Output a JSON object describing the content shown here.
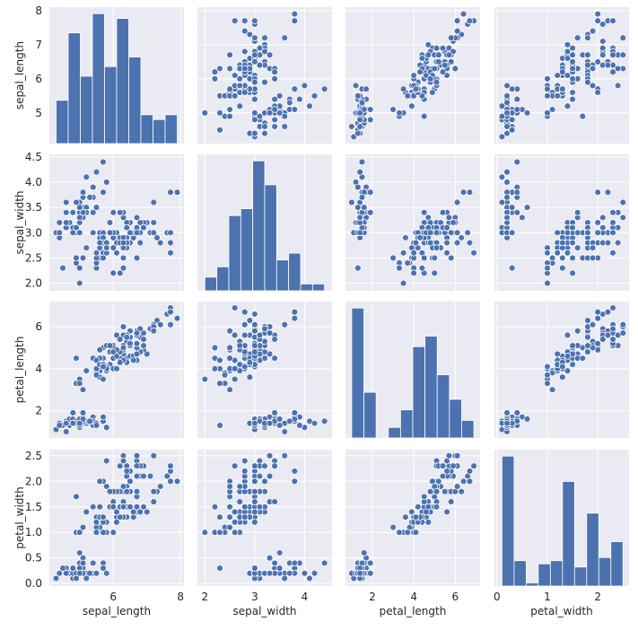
{
  "chart_data": {
    "type": "pairplot",
    "style": "seaborn darkgrid",
    "colors": {
      "marker": "#4c72b0",
      "panel": "#eaeaf2",
      "grid": "#ffffff"
    },
    "variables": [
      "sepal_length",
      "sepal_width",
      "petal_length",
      "petal_width"
    ],
    "axes": {
      "sepal_length": {
        "range": [
          4.1,
          8.1
        ],
        "ticks": [
          5,
          6,
          7,
          8
        ],
        "x_ticks": [
          6,
          8
        ]
      },
      "sepal_width": {
        "range": [
          1.85,
          4.55
        ],
        "ticks": [
          2.0,
          2.5,
          3.0,
          3.5,
          4.0,
          4.5
        ],
        "x_ticks": [
          2,
          3,
          4
        ]
      },
      "petal_length": {
        "range": [
          0.7,
          7.2
        ],
        "ticks": [
          2,
          4,
          6
        ],
        "x_ticks": [
          2,
          4,
          6
        ]
      },
      "petal_width": {
        "range": [
          -0.05,
          2.62
        ],
        "ticks": [
          0.0,
          0.5,
          1.0,
          1.5,
          2.0,
          2.5
        ],
        "x_ticks": [
          0,
          1,
          2
        ]
      }
    },
    "histograms": {
      "sepal_length": {
        "edges": [
          4.3,
          4.66,
          5.02,
          5.38,
          5.74,
          6.1,
          6.46,
          6.82,
          7.18,
          7.54,
          7.9
        ],
        "counts": [
          9,
          23,
          14,
          27,
          16,
          26,
          18,
          6,
          5,
          6
        ]
      },
      "sepal_width": {
        "edges": [
          2.0,
          2.24,
          2.48,
          2.72,
          2.96,
          3.2,
          3.44,
          3.68,
          3.92,
          4.16,
          4.4
        ],
        "counts": [
          4,
          7,
          22,
          24,
          38,
          31,
          9,
          11,
          2,
          2
        ]
      },
      "petal_length": {
        "edges": [
          1.0,
          1.59,
          2.18,
          2.77,
          3.36,
          3.95,
          4.54,
          5.13,
          5.72,
          6.31,
          6.9
        ],
        "counts": [
          37,
          13,
          0,
          3,
          8,
          26,
          29,
          18,
          11,
          5
        ]
      },
      "petal_width": {
        "edges": [
          0.1,
          0.34,
          0.58,
          0.82,
          1.06,
          1.3,
          1.54,
          1.78,
          2.02,
          2.26,
          2.5
        ],
        "counts": [
          41,
          8,
          1,
          7,
          8,
          33,
          6,
          23,
          9,
          14
        ]
      }
    },
    "observations": [
      [
        5.1,
        3.5,
        1.4,
        0.2
      ],
      [
        4.9,
        3.0,
        1.4,
        0.2
      ],
      [
        4.7,
        3.2,
        1.3,
        0.2
      ],
      [
        4.6,
        3.1,
        1.5,
        0.2
      ],
      [
        5.0,
        3.6,
        1.4,
        0.2
      ],
      [
        5.4,
        3.9,
        1.7,
        0.4
      ],
      [
        4.6,
        3.4,
        1.4,
        0.3
      ],
      [
        5.0,
        3.4,
        1.5,
        0.2
      ],
      [
        4.4,
        2.9,
        1.4,
        0.2
      ],
      [
        4.9,
        3.1,
        1.5,
        0.1
      ],
      [
        5.4,
        3.7,
        1.5,
        0.2
      ],
      [
        4.8,
        3.4,
        1.6,
        0.2
      ],
      [
        4.8,
        3.0,
        1.4,
        0.1
      ],
      [
        4.3,
        3.0,
        1.1,
        0.1
      ],
      [
        5.8,
        4.0,
        1.2,
        0.2
      ],
      [
        5.7,
        4.4,
        1.5,
        0.4
      ],
      [
        5.4,
        3.9,
        1.3,
        0.4
      ],
      [
        5.1,
        3.5,
        1.4,
        0.3
      ],
      [
        5.7,
        3.8,
        1.7,
        0.3
      ],
      [
        5.1,
        3.8,
        1.5,
        0.3
      ],
      [
        5.4,
        3.4,
        1.7,
        0.2
      ],
      [
        5.1,
        3.7,
        1.5,
        0.4
      ],
      [
        4.6,
        3.6,
        1.0,
        0.2
      ],
      [
        5.1,
        3.3,
        1.7,
        0.5
      ],
      [
        4.8,
        3.4,
        1.9,
        0.2
      ],
      [
        5.0,
        3.0,
        1.6,
        0.2
      ],
      [
        5.0,
        3.4,
        1.6,
        0.4
      ],
      [
        5.2,
        3.5,
        1.5,
        0.2
      ],
      [
        5.2,
        3.4,
        1.4,
        0.2
      ],
      [
        4.7,
        3.2,
        1.6,
        0.2
      ],
      [
        4.8,
        3.1,
        1.6,
        0.2
      ],
      [
        5.4,
        3.4,
        1.5,
        0.4
      ],
      [
        5.2,
        4.1,
        1.5,
        0.1
      ],
      [
        5.5,
        4.2,
        1.4,
        0.2
      ],
      [
        4.9,
        3.1,
        1.5,
        0.2
      ],
      [
        5.0,
        3.2,
        1.2,
        0.2
      ],
      [
        5.5,
        3.5,
        1.3,
        0.2
      ],
      [
        4.9,
        3.6,
        1.4,
        0.1
      ],
      [
        4.4,
        3.0,
        1.3,
        0.2
      ],
      [
        5.1,
        3.4,
        1.5,
        0.2
      ],
      [
        5.0,
        3.5,
        1.3,
        0.3
      ],
      [
        4.5,
        2.3,
        1.3,
        0.3
      ],
      [
        4.4,
        3.2,
        1.3,
        0.2
      ],
      [
        5.0,
        3.5,
        1.6,
        0.6
      ],
      [
        5.1,
        3.8,
        1.9,
        0.4
      ],
      [
        4.8,
        3.0,
        1.4,
        0.3
      ],
      [
        5.1,
        3.8,
        1.6,
        0.2
      ],
      [
        4.6,
        3.2,
        1.4,
        0.2
      ],
      [
        5.3,
        3.7,
        1.5,
        0.2
      ],
      [
        5.0,
        3.3,
        1.4,
        0.2
      ],
      [
        7.0,
        3.2,
        4.7,
        1.4
      ],
      [
        6.4,
        3.2,
        4.5,
        1.5
      ],
      [
        6.9,
        3.1,
        4.9,
        1.5
      ],
      [
        5.5,
        2.3,
        4.0,
        1.3
      ],
      [
        6.5,
        2.8,
        4.6,
        1.5
      ],
      [
        5.7,
        2.8,
        4.5,
        1.3
      ],
      [
        6.3,
        3.3,
        4.7,
        1.6
      ],
      [
        4.9,
        2.4,
        3.3,
        1.0
      ],
      [
        6.6,
        2.9,
        4.6,
        1.3
      ],
      [
        5.2,
        2.7,
        3.9,
        1.4
      ],
      [
        5.0,
        2.0,
        3.5,
        1.0
      ],
      [
        5.9,
        3.0,
        4.2,
        1.5
      ],
      [
        6.0,
        2.2,
        4.0,
        1.0
      ],
      [
        6.1,
        2.9,
        4.7,
        1.4
      ],
      [
        5.6,
        2.9,
        3.6,
        1.3
      ],
      [
        6.7,
        3.1,
        4.4,
        1.4
      ],
      [
        5.6,
        3.0,
        4.5,
        1.5
      ],
      [
        5.8,
        2.7,
        4.1,
        1.0
      ],
      [
        6.2,
        2.2,
        4.5,
        1.5
      ],
      [
        5.6,
        2.5,
        3.9,
        1.1
      ],
      [
        5.9,
        3.2,
        4.8,
        1.8
      ],
      [
        6.1,
        2.8,
        4.0,
        1.3
      ],
      [
        6.3,
        2.5,
        4.9,
        1.5
      ],
      [
        6.1,
        2.8,
        4.7,
        1.2
      ],
      [
        6.4,
        2.9,
        4.3,
        1.3
      ],
      [
        6.6,
        3.0,
        4.4,
        1.4
      ],
      [
        6.8,
        2.8,
        4.8,
        1.4
      ],
      [
        6.7,
        3.0,
        5.0,
        1.7
      ],
      [
        6.0,
        2.9,
        4.5,
        1.5
      ],
      [
        5.7,
        2.6,
        3.5,
        1.0
      ],
      [
        5.5,
        2.4,
        3.8,
        1.1
      ],
      [
        5.5,
        2.4,
        3.7,
        1.0
      ],
      [
        5.8,
        2.7,
        3.9,
        1.2
      ],
      [
        6.0,
        2.7,
        5.1,
        1.6
      ],
      [
        5.4,
        3.0,
        4.5,
        1.5
      ],
      [
        6.0,
        3.4,
        4.5,
        1.6
      ],
      [
        6.7,
        3.1,
        4.7,
        1.5
      ],
      [
        6.3,
        2.3,
        4.4,
        1.3
      ],
      [
        5.6,
        3.0,
        4.1,
        1.3
      ],
      [
        5.5,
        2.5,
        4.0,
        1.3
      ],
      [
        5.5,
        2.6,
        4.4,
        1.2
      ],
      [
        6.1,
        3.0,
        4.6,
        1.4
      ],
      [
        5.8,
        2.6,
        4.0,
        1.2
      ],
      [
        5.0,
        2.3,
        3.3,
        1.0
      ],
      [
        5.6,
        2.7,
        4.2,
        1.3
      ],
      [
        5.7,
        3.0,
        4.2,
        1.2
      ],
      [
        5.7,
        2.9,
        4.2,
        1.3
      ],
      [
        6.2,
        2.9,
        4.3,
        1.3
      ],
      [
        5.1,
        2.5,
        3.0,
        1.1
      ],
      [
        5.7,
        2.8,
        4.1,
        1.3
      ],
      [
        6.3,
        3.3,
        6.0,
        2.5
      ],
      [
        5.8,
        2.7,
        5.1,
        1.9
      ],
      [
        7.1,
        3.0,
        5.9,
        2.1
      ],
      [
        6.3,
        2.9,
        5.6,
        1.8
      ],
      [
        6.5,
        3.0,
        5.8,
        2.2
      ],
      [
        7.6,
        3.0,
        6.6,
        2.1
      ],
      [
        4.9,
        2.5,
        4.5,
        1.7
      ],
      [
        7.3,
        2.9,
        6.3,
        1.8
      ],
      [
        6.7,
        2.5,
        5.8,
        1.8
      ],
      [
        7.2,
        3.6,
        6.1,
        2.5
      ],
      [
        6.5,
        3.2,
        5.1,
        2.0
      ],
      [
        6.4,
        2.7,
        5.3,
        1.9
      ],
      [
        6.8,
        3.0,
        5.5,
        2.1
      ],
      [
        5.7,
        2.5,
        5.0,
        2.0
      ],
      [
        5.8,
        2.8,
        5.1,
        2.4
      ],
      [
        6.4,
        3.2,
        5.3,
        2.3
      ],
      [
        6.5,
        3.0,
        5.5,
        1.8
      ],
      [
        7.7,
        3.8,
        6.7,
        2.2
      ],
      [
        7.7,
        2.6,
        6.9,
        2.3
      ],
      [
        6.0,
        2.2,
        5.0,
        1.5
      ],
      [
        6.9,
        3.2,
        5.7,
        2.3
      ],
      [
        5.6,
        2.8,
        4.9,
        2.0
      ],
      [
        7.7,
        2.8,
        6.7,
        2.0
      ],
      [
        6.3,
        2.7,
        4.9,
        1.8
      ],
      [
        6.7,
        3.3,
        5.7,
        2.1
      ],
      [
        7.2,
        3.2,
        6.0,
        1.8
      ],
      [
        6.2,
        2.8,
        4.8,
        1.8
      ],
      [
        6.1,
        3.0,
        4.9,
        1.8
      ],
      [
        6.4,
        2.8,
        5.6,
        2.1
      ],
      [
        7.2,
        3.0,
        5.8,
        1.6
      ],
      [
        7.4,
        2.8,
        6.1,
        1.9
      ],
      [
        7.9,
        3.8,
        6.4,
        2.0
      ],
      [
        6.4,
        2.8,
        5.6,
        2.2
      ],
      [
        6.3,
        2.8,
        5.1,
        1.5
      ],
      [
        6.1,
        2.6,
        5.6,
        1.4
      ],
      [
        7.7,
        3.0,
        6.1,
        2.3
      ],
      [
        6.3,
        3.4,
        5.6,
        2.4
      ],
      [
        6.4,
        3.1,
        5.5,
        1.8
      ],
      [
        6.0,
        3.0,
        4.8,
        1.8
      ],
      [
        6.9,
        3.1,
        5.4,
        2.1
      ],
      [
        6.7,
        3.1,
        5.6,
        2.4
      ],
      [
        6.9,
        3.1,
        5.1,
        2.3
      ],
      [
        5.8,
        2.7,
        5.1,
        1.9
      ],
      [
        6.8,
        3.2,
        5.9,
        2.3
      ],
      [
        6.7,
        3.3,
        5.7,
        2.5
      ],
      [
        6.7,
        3.0,
        5.2,
        2.3
      ],
      [
        6.3,
        2.5,
        5.0,
        1.9
      ],
      [
        6.5,
        3.0,
        5.2,
        2.0
      ],
      [
        6.2,
        3.4,
        5.4,
        2.3
      ],
      [
        5.9,
        3.0,
        5.1,
        1.8
      ]
    ]
  }
}
